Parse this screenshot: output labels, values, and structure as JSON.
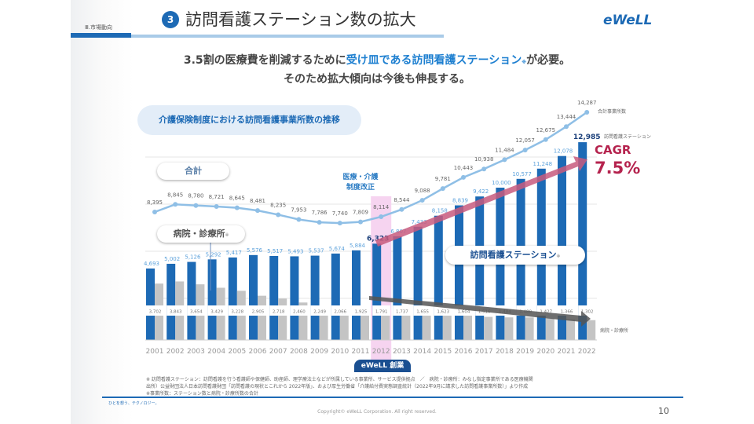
{
  "header": {
    "section": "Ⅲ.市場動向",
    "number": "3",
    "title": "訪問看護ステーション数の拡大",
    "logo": "eWeLL"
  },
  "subtitle": {
    "line1_pre": "3.5割の医療費を削減するために",
    "line1_hl": "受け皿である訪問看護ステーション",
    "line1_note": "※",
    "line1_post": "が必要。",
    "line2": "そのため拡大傾向は今後も伸長する。"
  },
  "chart_data": {
    "type": "bar",
    "title": "介護保険制度における訪問看護事業所数の推移",
    "categories": [
      "2001",
      "2002",
      "2003",
      "2004",
      "2005",
      "2006",
      "2007",
      "2008",
      "2009",
      "2010",
      "2011",
      "2012",
      "2013",
      "2014",
      "2015",
      "2016",
      "2017",
      "2018",
      "2019",
      "2020",
      "2021",
      "2022"
    ],
    "series": [
      {
        "name": "訪問看護ステーション",
        "type": "bar",
        "color": "#1d6ab5",
        "values": [
          4693,
          5002,
          5126,
          5292,
          5417,
          5576,
          5517,
          5493,
          5537,
          5674,
          5884,
          6323,
          6807,
          7433,
          8158,
          8839,
          9422,
          10000,
          10577,
          11248,
          12078,
          12985
        ]
      },
      {
        "name": "病院・診療所",
        "type": "bar",
        "color": "#c4c4c4",
        "values": [
          3702,
          3843,
          3654,
          3429,
          3228,
          2905,
          2718,
          2460,
          2249,
          2066,
          1925,
          1791,
          1737,
          1655,
          1623,
          1604,
          1516,
          1484,
          1480,
          1427,
          1366,
          1302
        ]
      },
      {
        "name": "合計事業所数",
        "type": "line",
        "color": "#8fbfe6",
        "values": [
          8395,
          8845,
          8780,
          8721,
          8645,
          8481,
          8235,
          7953,
          7786,
          7740,
          7809,
          8114,
          8544,
          9088,
          9781,
          10443,
          10938,
          11484,
          12057,
          12675,
          13444,
          14287
        ]
      }
    ],
    "legend_labels": {
      "total": "合計",
      "hospital": "病院・診療所",
      "hospital_note": "※",
      "station": "訪問看護ステーション",
      "station_note": "※"
    },
    "end_labels": {
      "total": "合計事業所数",
      "station": "訪問看護ステーション",
      "hospital": "病院・診療所"
    },
    "annotation_reform": [
      "医療・介護",
      "制度改正"
    ],
    "highlight_year": "2012",
    "ewell_founded": "eWeLL 創業",
    "cagr_label": "CAGR",
    "cagr_value": "7.5%",
    "grid": true
  },
  "footnotes": [
    "※ 訪問看護ステーション：訪問看護を行う看護師や保健師、助産師、理学療法士などが所属している事業所、サービス提供拠点　／　病院・診療所：みなし指定事業所である医療機関",
    "出所）公益財団法人日本訪問看護財団「訪問看護の現状とこれから 2022年版」、および厚生労働省「介護給付費実態調査統計（2022年9月に請求した訪問看護事業所数）」より作成",
    "※事業所数：ステーション数と病院・診療所数の合計"
  ],
  "footer": {
    "tagline": "ひとを想う、テクノロジー。",
    "copyright": "Copyright© eWeLL Corporation. All right reserved.",
    "page": "10"
  }
}
